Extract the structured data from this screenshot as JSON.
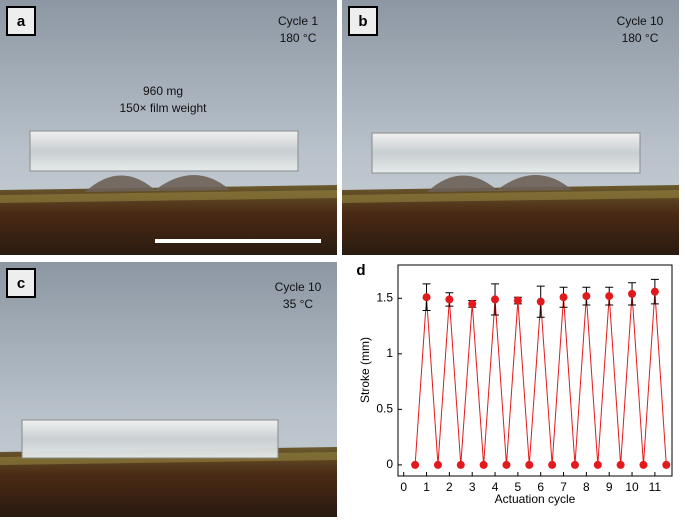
{
  "panels": [
    {
      "label": "a",
      "lines": [
        "Cycle 1",
        "180 °C"
      ],
      "note": [
        "960 mg",
        "150× film weight"
      ]
    },
    {
      "label": "b",
      "lines": [
        "Cycle 10",
        "180 °C"
      ]
    },
    {
      "label": "c",
      "lines": [
        "Cycle 10",
        "35 °C"
      ]
    }
  ],
  "chart_data": {
    "type": "line",
    "panel_label": "d",
    "xlabel": "Actuation cycle",
    "ylabel": "Stroke (mm)",
    "x": [
      0.5,
      1,
      1.5,
      2,
      2.5,
      3,
      3.5,
      4,
      4.5,
      5,
      5.5,
      6,
      6.5,
      7,
      7.5,
      8,
      8.5,
      9,
      9.5,
      10,
      10.5,
      11,
      11.5
    ],
    "series": [
      {
        "color": "#e31a1c",
        "values": [
          0,
          1.51,
          0,
          1.49,
          0,
          1.45,
          0,
          1.49,
          0,
          1.48,
          0,
          1.47,
          0,
          1.51,
          0,
          1.52,
          0,
          1.52,
          0,
          1.54,
          0,
          1.56,
          0
        ],
        "errors": [
          null,
          0.12,
          null,
          0.06,
          null,
          0.03,
          null,
          0.14,
          null,
          0.03,
          null,
          0.14,
          null,
          0.09,
          null,
          0.08,
          null,
          0.08,
          null,
          0.1,
          null,
          0.11,
          null
        ]
      }
    ],
    "xlim": [
      -0.25,
      11.75
    ],
    "ylim": [
      -0.1,
      1.8
    ],
    "xticks": [
      0,
      1,
      2,
      3,
      4,
      5,
      6,
      7,
      8,
      9,
      10,
      11
    ],
    "yticks": [
      0,
      0.5,
      1,
      1.5
    ]
  }
}
